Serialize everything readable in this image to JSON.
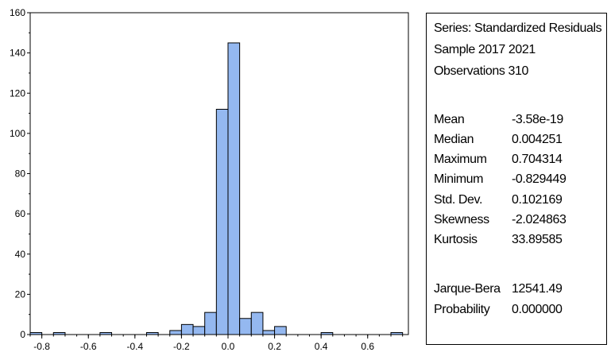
{
  "chart_data": {
    "type": "bar",
    "x_ticks": [
      -0.8,
      -0.6,
      -0.4,
      -0.2,
      0.0,
      0.2,
      0.4,
      0.6
    ],
    "x_tick_labels": [
      "-0.8",
      "-0.6",
      "-0.4",
      "-0.2",
      "0.0",
      "0.2",
      "0.4",
      "0.6"
    ],
    "y_ticks": [
      0,
      20,
      40,
      60,
      80,
      100,
      120,
      140,
      160
    ],
    "ylim": [
      0,
      160
    ],
    "xlim": [
      -0.85,
      0.775
    ],
    "bin_width": 0.05,
    "bins": [
      {
        "start": -0.85,
        "end": -0.8,
        "count": 1
      },
      {
        "start": -0.75,
        "end": -0.7,
        "count": 1
      },
      {
        "start": -0.55,
        "end": -0.5,
        "count": 1
      },
      {
        "start": -0.35,
        "end": -0.3,
        "count": 1
      },
      {
        "start": -0.25,
        "end": -0.2,
        "count": 2
      },
      {
        "start": -0.2,
        "end": -0.15,
        "count": 5
      },
      {
        "start": -0.15,
        "end": -0.1,
        "count": 4
      },
      {
        "start": -0.1,
        "end": -0.05,
        "count": 11
      },
      {
        "start": -0.05,
        "end": 0.0,
        "count": 112
      },
      {
        "start": 0.0,
        "end": 0.05,
        "count": 145
      },
      {
        "start": 0.05,
        "end": 0.1,
        "count": 8
      },
      {
        "start": 0.1,
        "end": 0.15,
        "count": 11
      },
      {
        "start": 0.15,
        "end": 0.2,
        "count": 2
      },
      {
        "start": 0.2,
        "end": 0.25,
        "count": 4
      },
      {
        "start": 0.4,
        "end": 0.45,
        "count": 1
      },
      {
        "start": 0.7,
        "end": 0.75,
        "count": 1
      }
    ],
    "colors": {
      "bar_fill": "#94B8F0",
      "bar_edge": "#000000"
    }
  },
  "stats": {
    "series_line": "Series: Standardized Residuals",
    "sample_line": "Sample 2017 2021",
    "observations_line": "Observations 310",
    "rows": [
      {
        "label": "Mean",
        "value": "-3.58e-19"
      },
      {
        "label": "Median",
        "value": "0.004251"
      },
      {
        "label": "Maximum",
        "value": "0.704314"
      },
      {
        "label": "Minimum",
        "value": "-0.829449"
      },
      {
        "label": "Std. Dev.",
        "value": "0.102169"
      },
      {
        "label": "Skewness",
        "value": "-2.024863"
      },
      {
        "label": "Kurtosis",
        "value": "33.89585"
      }
    ],
    "test_rows": [
      {
        "label": "Jarque-Bera",
        "value": "12541.49"
      },
      {
        "label": "Probability",
        "value": "0.000000"
      }
    ]
  }
}
